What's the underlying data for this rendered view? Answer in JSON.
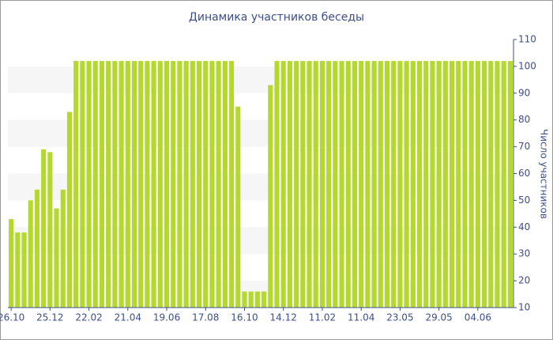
{
  "chart_data": {
    "type": "bar",
    "title": "Динамика участников беседы",
    "y_label": "Число участников",
    "categories": [
      "26.10",
      null,
      null,
      null,
      null,
      null,
      "25.12",
      null,
      null,
      null,
      null,
      null,
      "22.02",
      null,
      null,
      null,
      null,
      null,
      "21.04",
      null,
      null,
      null,
      null,
      null,
      "19.06",
      null,
      null,
      null,
      null,
      null,
      "17.08",
      null,
      null,
      null,
      null,
      null,
      "16.10",
      null,
      null,
      null,
      null,
      null,
      "14.12",
      null,
      null,
      null,
      null,
      null,
      "11.02",
      null,
      null,
      null,
      null,
      null,
      "11.04",
      null,
      null,
      null,
      null,
      null,
      "23.05",
      null,
      null,
      null,
      null,
      null,
      "29.05",
      null,
      null,
      null,
      null,
      null,
      "04.06",
      null,
      null,
      null,
      null,
      null
    ],
    "values": [
      43,
      38,
      38,
      50,
      54,
      69,
      68,
      47,
      54,
      83,
      102,
      102,
      102,
      102,
      102,
      102,
      102,
      102,
      102,
      102,
      102,
      102,
      102,
      102,
      102,
      102,
      102,
      102,
      102,
      102,
      102,
      102,
      102,
      102,
      102,
      85,
      16,
      16,
      16,
      16,
      93,
      102,
      102,
      102,
      102,
      102,
      102,
      102,
      102,
      102,
      102,
      102,
      102,
      102,
      102,
      102,
      102,
      102,
      102,
      102,
      102,
      102,
      102,
      102,
      102,
      102,
      102,
      102,
      102,
      102,
      102,
      102,
      102,
      102,
      102,
      102,
      102,
      102
    ],
    "color": "#b5d82c",
    "ylim": [
      10,
      110
    ],
    "yticks": [
      10,
      20,
      30,
      40,
      50,
      60,
      70,
      80,
      90,
      100,
      110
    ],
    "grid": true,
    "y_axis_side": "right"
  }
}
